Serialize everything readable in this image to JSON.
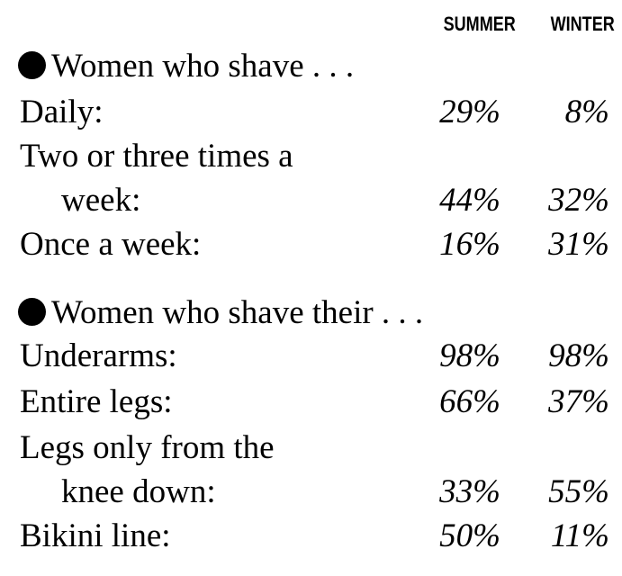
{
  "columns": {
    "summer": "SUMMER",
    "winter": "WINTER"
  },
  "section1": {
    "title": "Women who shave . . .",
    "rows": [
      {
        "label": "Daily:",
        "summer": "29%",
        "winter": "8%"
      },
      {
        "label": "Two or three times a"
      },
      {
        "label": "week:",
        "summer": "44%",
        "winter": "32%"
      },
      {
        "label": "Once a week:",
        "summer": "16%",
        "winter": "31%"
      }
    ]
  },
  "section2": {
    "title": "Women who shave their . . .",
    "rows": [
      {
        "label": "Underarms:",
        "summer": "98%",
        "winter": "98%"
      },
      {
        "label": "Entire legs:",
        "summer": "66%",
        "winter": "37%"
      },
      {
        "label": "Legs only from the"
      },
      {
        "label": "knee down:",
        "summer": "33%",
        "winter": "55%"
      },
      {
        "label": "Bikini line:",
        "summer": "50%",
        "winter": "11%"
      }
    ]
  }
}
